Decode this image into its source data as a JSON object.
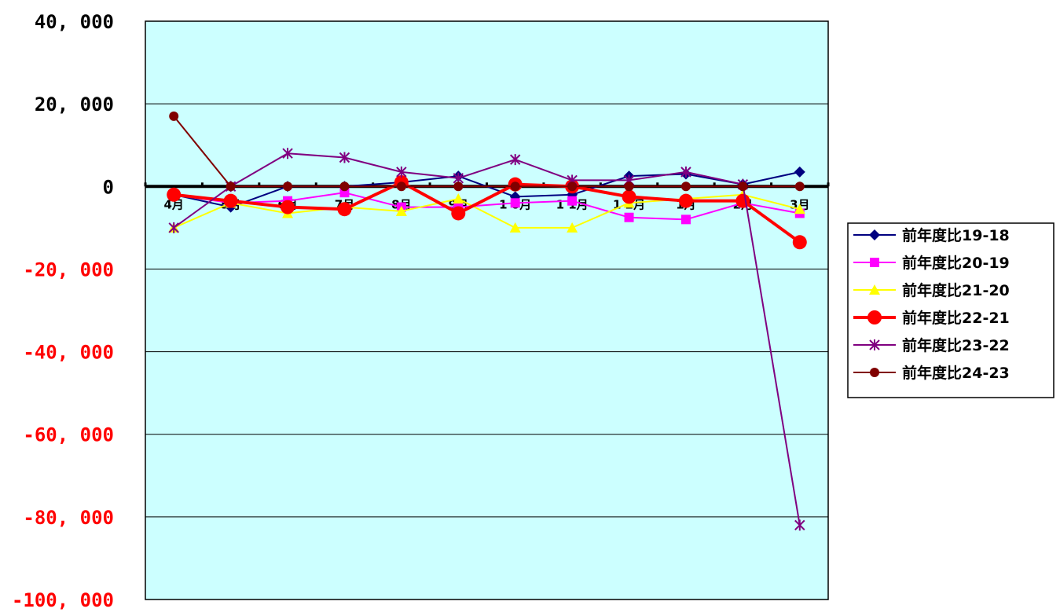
{
  "chart_data": {
    "type": "line",
    "title": "",
    "xlabel": "",
    "ylabel": "",
    "categories": [
      "4月",
      "5月",
      "6月",
      "7月",
      "8月",
      "9月",
      "10月",
      "11月",
      "12月",
      "1月",
      "2月",
      "3月"
    ],
    "category_labels": [
      "4月",
      "5月",
      "6月",
      "7月",
      "8月",
      "9月",
      "1 0月",
      "1 1月",
      "1 2月",
      "1月",
      "2月",
      "3月"
    ],
    "ylim": [
      -100000,
      40000
    ],
    "yticks": [
      40000,
      20000,
      0,
      -20000,
      -40000,
      -60000,
      -80000,
      -100000
    ],
    "ytick_labels": [
      "40, 000",
      "20, 000",
      "0",
      "-20, 000",
      "-40, 000",
      "-60, 000",
      "-80, 000",
      "-100, 000"
    ],
    "ytick_colors": {
      "positive": "#000000",
      "negative": "#ff0000"
    },
    "plot_background": "#ccffff",
    "grid": true,
    "legend_position": "right",
    "series": [
      {
        "name": "前年度比19-18",
        "color": "#000080",
        "marker": "diamond",
        "width": 2,
        "values": [
          -2000,
          -5000,
          0,
          0,
          1000,
          2500,
          -2500,
          -2000,
          2500,
          3000,
          500,
          3500
        ]
      },
      {
        "name": "前年度比20-19",
        "color": "#ff00ff",
        "marker": "square",
        "width": 2,
        "values": [
          -2000,
          -4000,
          -3500,
          -1500,
          -5000,
          -5000,
          -4000,
          -3500,
          -7500,
          -8000,
          -4000,
          -6500
        ]
      },
      {
        "name": "前年度比21-20",
        "color": "#ffff00",
        "marker": "triangle",
        "width": 2,
        "values": [
          -10000,
          -4000,
          -6500,
          -5000,
          -6000,
          -3000,
          -10000,
          -10000,
          -4000,
          -3000,
          -2000,
          -5500
        ]
      },
      {
        "name": "前年度比22-21",
        "color": "#ff0000",
        "marker": "circle",
        "width": 4,
        "values": [
          -2000,
          -3500,
          -5000,
          -5500,
          1000,
          -6500,
          500,
          0,
          -2500,
          -3500,
          -3500,
          -13500
        ]
      },
      {
        "name": "前年度比23-22",
        "color": "#800080",
        "marker": "star",
        "width": 2,
        "values": [
          -10000,
          0,
          8000,
          7000,
          3500,
          2000,
          6500,
          1500,
          1500,
          3500,
          500,
          -82000
        ]
      },
      {
        "name": "前年度比24-23",
        "color": "#800000",
        "marker": "circle-small",
        "width": 2,
        "values": [
          17000,
          0,
          0,
          0,
          0,
          0,
          0,
          0,
          0,
          0,
          0,
          0
        ]
      }
    ]
  }
}
